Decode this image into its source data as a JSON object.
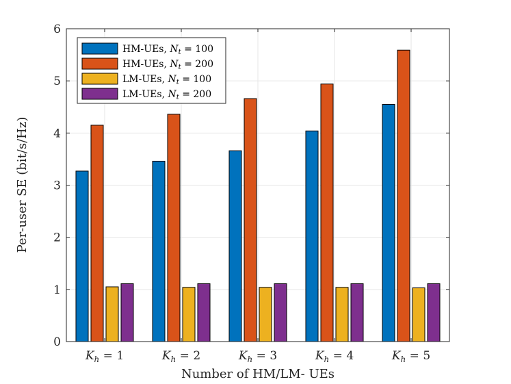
{
  "chart_data": {
    "type": "bar",
    "title": "",
    "xlabel": "Number of HM/LM- UEs",
    "ylabel": "Per-user SE (bit/s/Hz)",
    "ylim": [
      0,
      6
    ],
    "yticks": [
      0,
      1,
      2,
      3,
      4,
      5,
      6
    ],
    "grid": true,
    "legend_position": "top-left",
    "categories": [
      {
        "base": "K",
        "sub": "h",
        "rest": " = 1"
      },
      {
        "base": "K",
        "sub": "h",
        "rest": " = 2"
      },
      {
        "base": "K",
        "sub": "h",
        "rest": " = 3"
      },
      {
        "base": "K",
        "sub": "h",
        "rest": " = 4"
      },
      {
        "base": "K",
        "sub": "h",
        "rest": " = 5"
      }
    ],
    "series": [
      {
        "name": "HM-UEs, N_t = 100",
        "label_prefix": "HM-UEs, ",
        "label_var": "N",
        "label_sub": "t",
        "label_rest": " = 100",
        "color": "#0072BD",
        "values": [
          3.27,
          3.46,
          3.66,
          4.04,
          4.55
        ]
      },
      {
        "name": "HM-UEs, N_t = 200",
        "label_prefix": "HM-UEs, ",
        "label_var": "N",
        "label_sub": "t",
        "label_rest": " = 200",
        "color": "#D95319",
        "values": [
          4.15,
          4.36,
          4.66,
          4.94,
          5.59
        ]
      },
      {
        "name": "LM-UEs, N_t = 100",
        "label_prefix": "LM-UEs, ",
        "label_var": "N",
        "label_sub": "t",
        "label_rest": " = 100",
        "color": "#EDB120",
        "values": [
          1.05,
          1.04,
          1.04,
          1.04,
          1.03
        ]
      },
      {
        "name": "LM-UEs, N_t = 200",
        "label_prefix": "LM-UEs, ",
        "label_var": "N",
        "label_sub": "t",
        "label_rest": " = 200",
        "color": "#7E2F8E",
        "values": [
          1.11,
          1.11,
          1.11,
          1.11,
          1.11
        ]
      }
    ]
  }
}
